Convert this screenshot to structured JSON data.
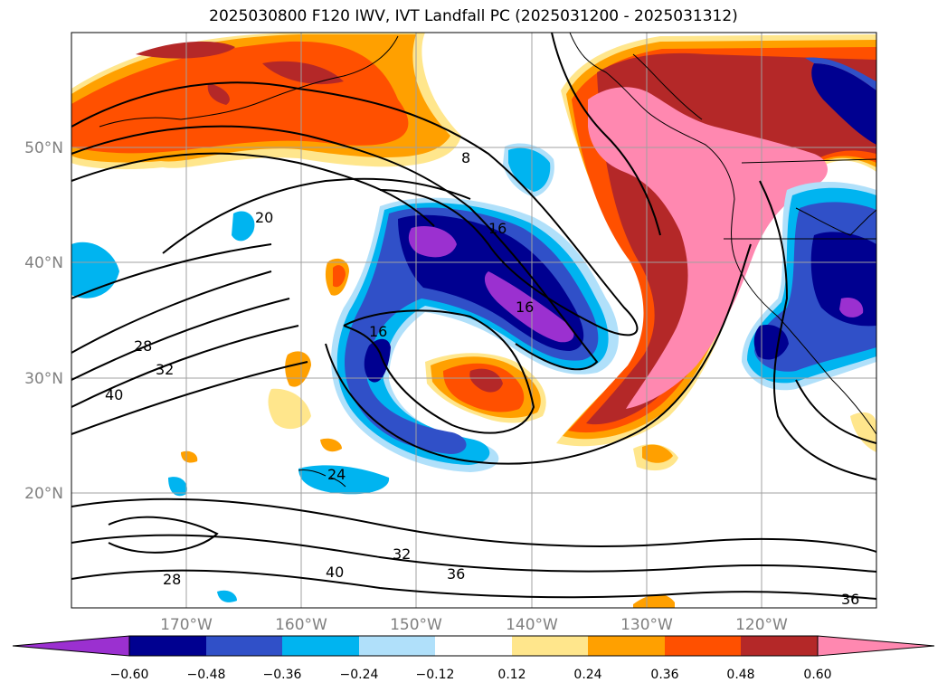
{
  "title": "2025030800 F120 IWV, IVT Landfall PC (2025031200 - 2025031312)",
  "map": {
    "lat_labels": [
      "50°N",
      "40°N",
      "30°N",
      "20°N"
    ],
    "lon_labels": [
      "170°W",
      "160°W",
      "150°W",
      "140°W",
      "130°W",
      "120°W"
    ],
    "contour_labels": [
      "8",
      "16",
      "16",
      "20",
      "28",
      "32",
      "40",
      "24",
      "32",
      "36",
      "28",
      "40",
      "36",
      "16"
    ]
  },
  "colorbar": {
    "tick_labels": [
      "−0.60",
      "−0.48",
      "−0.36",
      "−0.24",
      "−0.12",
      "0.12",
      "0.24",
      "0.36",
      "0.48",
      "0.60"
    ],
    "colors": [
      "#9b30d0",
      "#000090",
      "#3050c8",
      "#00b4f0",
      "#b0e0fa",
      "#ffffff",
      "#ffe68c",
      "#ffa000",
      "#ff5000",
      "#b42828",
      "#ff88b0"
    ]
  },
  "palette": {
    "purple": "#9b30d0",
    "navy": "#000090",
    "blue": "#3050c8",
    "cyan": "#00b4f0",
    "lightblue": "#b0e0fa",
    "yellow": "#ffe68c",
    "orange": "#ffa000",
    "redorange": "#ff5000",
    "darkred": "#b42828",
    "pink": "#ff88b0"
  }
}
